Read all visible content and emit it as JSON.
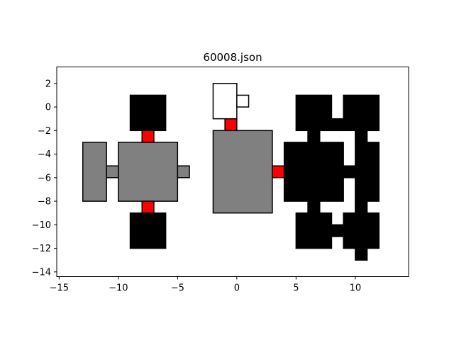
{
  "chart_data": {
    "type": "diagram",
    "title": "60008.json",
    "xlim": [
      -15.2,
      14.5
    ],
    "ylim": [
      -14.4,
      3.4
    ],
    "xticks": [
      -15,
      -10,
      -5,
      0,
      5,
      10
    ],
    "yticks": [
      2,
      0,
      -2,
      -4,
      -6,
      -8,
      -10,
      -12,
      -14
    ],
    "grid": false,
    "colors": {
      "gray": "#808080",
      "black": "#000000",
      "red": "#ff0000",
      "white": "#ffffff"
    },
    "rects": [
      {
        "x": -13,
        "y": -8,
        "w": 2,
        "h": 5,
        "fill": "gray"
      },
      {
        "x": -11,
        "y": -6,
        "w": 1,
        "h": 1,
        "fill": "gray"
      },
      {
        "x": -10,
        "y": -8,
        "w": 5,
        "h": 5,
        "fill": "gray"
      },
      {
        "x": -5,
        "y": -6,
        "w": 1,
        "h": 1,
        "fill": "gray"
      },
      {
        "x": -2,
        "y": -9,
        "w": 5,
        "h": 7,
        "fill": "gray"
      },
      {
        "x": -9,
        "y": -2,
        "w": 3,
        "h": 3,
        "fill": "black"
      },
      {
        "x": -9,
        "y": -12,
        "w": 3,
        "h": 3,
        "fill": "black"
      },
      {
        "x": -8,
        "y": -3,
        "w": 1,
        "h": 1,
        "fill": "red"
      },
      {
        "x": -8,
        "y": -9,
        "w": 1,
        "h": 1,
        "fill": "red"
      },
      {
        "x": -1,
        "y": -2,
        "w": 1,
        "h": 1,
        "fill": "red"
      },
      {
        "x": 3,
        "y": -6,
        "w": 1,
        "h": 1,
        "fill": "red"
      },
      {
        "x": -2,
        "y": -1,
        "w": 2,
        "h": 3,
        "fill": "white"
      },
      {
        "x": 0,
        "y": 0,
        "w": 1,
        "h": 1,
        "fill": "white"
      },
      {
        "x": 5,
        "y": -2,
        "w": 3,
        "h": 3,
        "fill": "black"
      },
      {
        "x": 9,
        "y": -2,
        "w": 3,
        "h": 3,
        "fill": "black"
      },
      {
        "x": 8,
        "y": -2,
        "w": 1,
        "h": 1,
        "fill": "black"
      },
      {
        "x": 6,
        "y": -3,
        "w": 1,
        "h": 1,
        "fill": "black"
      },
      {
        "x": 10,
        "y": -3,
        "w": 1,
        "h": 1,
        "fill": "black"
      },
      {
        "x": 4,
        "y": -8,
        "w": 5,
        "h": 5,
        "fill": "black"
      },
      {
        "x": 9,
        "y": -6,
        "w": 1,
        "h": 1,
        "fill": "black"
      },
      {
        "x": 10,
        "y": -8,
        "w": 2,
        "h": 5,
        "fill": "black"
      },
      {
        "x": 6,
        "y": -9,
        "w": 1,
        "h": 1,
        "fill": "black"
      },
      {
        "x": 10,
        "y": -9,
        "w": 1,
        "h": 1,
        "fill": "black"
      },
      {
        "x": 5,
        "y": -12,
        "w": 3,
        "h": 3,
        "fill": "black"
      },
      {
        "x": 8,
        "y": -11,
        "w": 1,
        "h": 1,
        "fill": "black"
      },
      {
        "x": 9,
        "y": -12,
        "w": 3,
        "h": 3,
        "fill": "black"
      },
      {
        "x": 10,
        "y": -13,
        "w": 1,
        "h": 1,
        "fill": "black"
      }
    ]
  }
}
